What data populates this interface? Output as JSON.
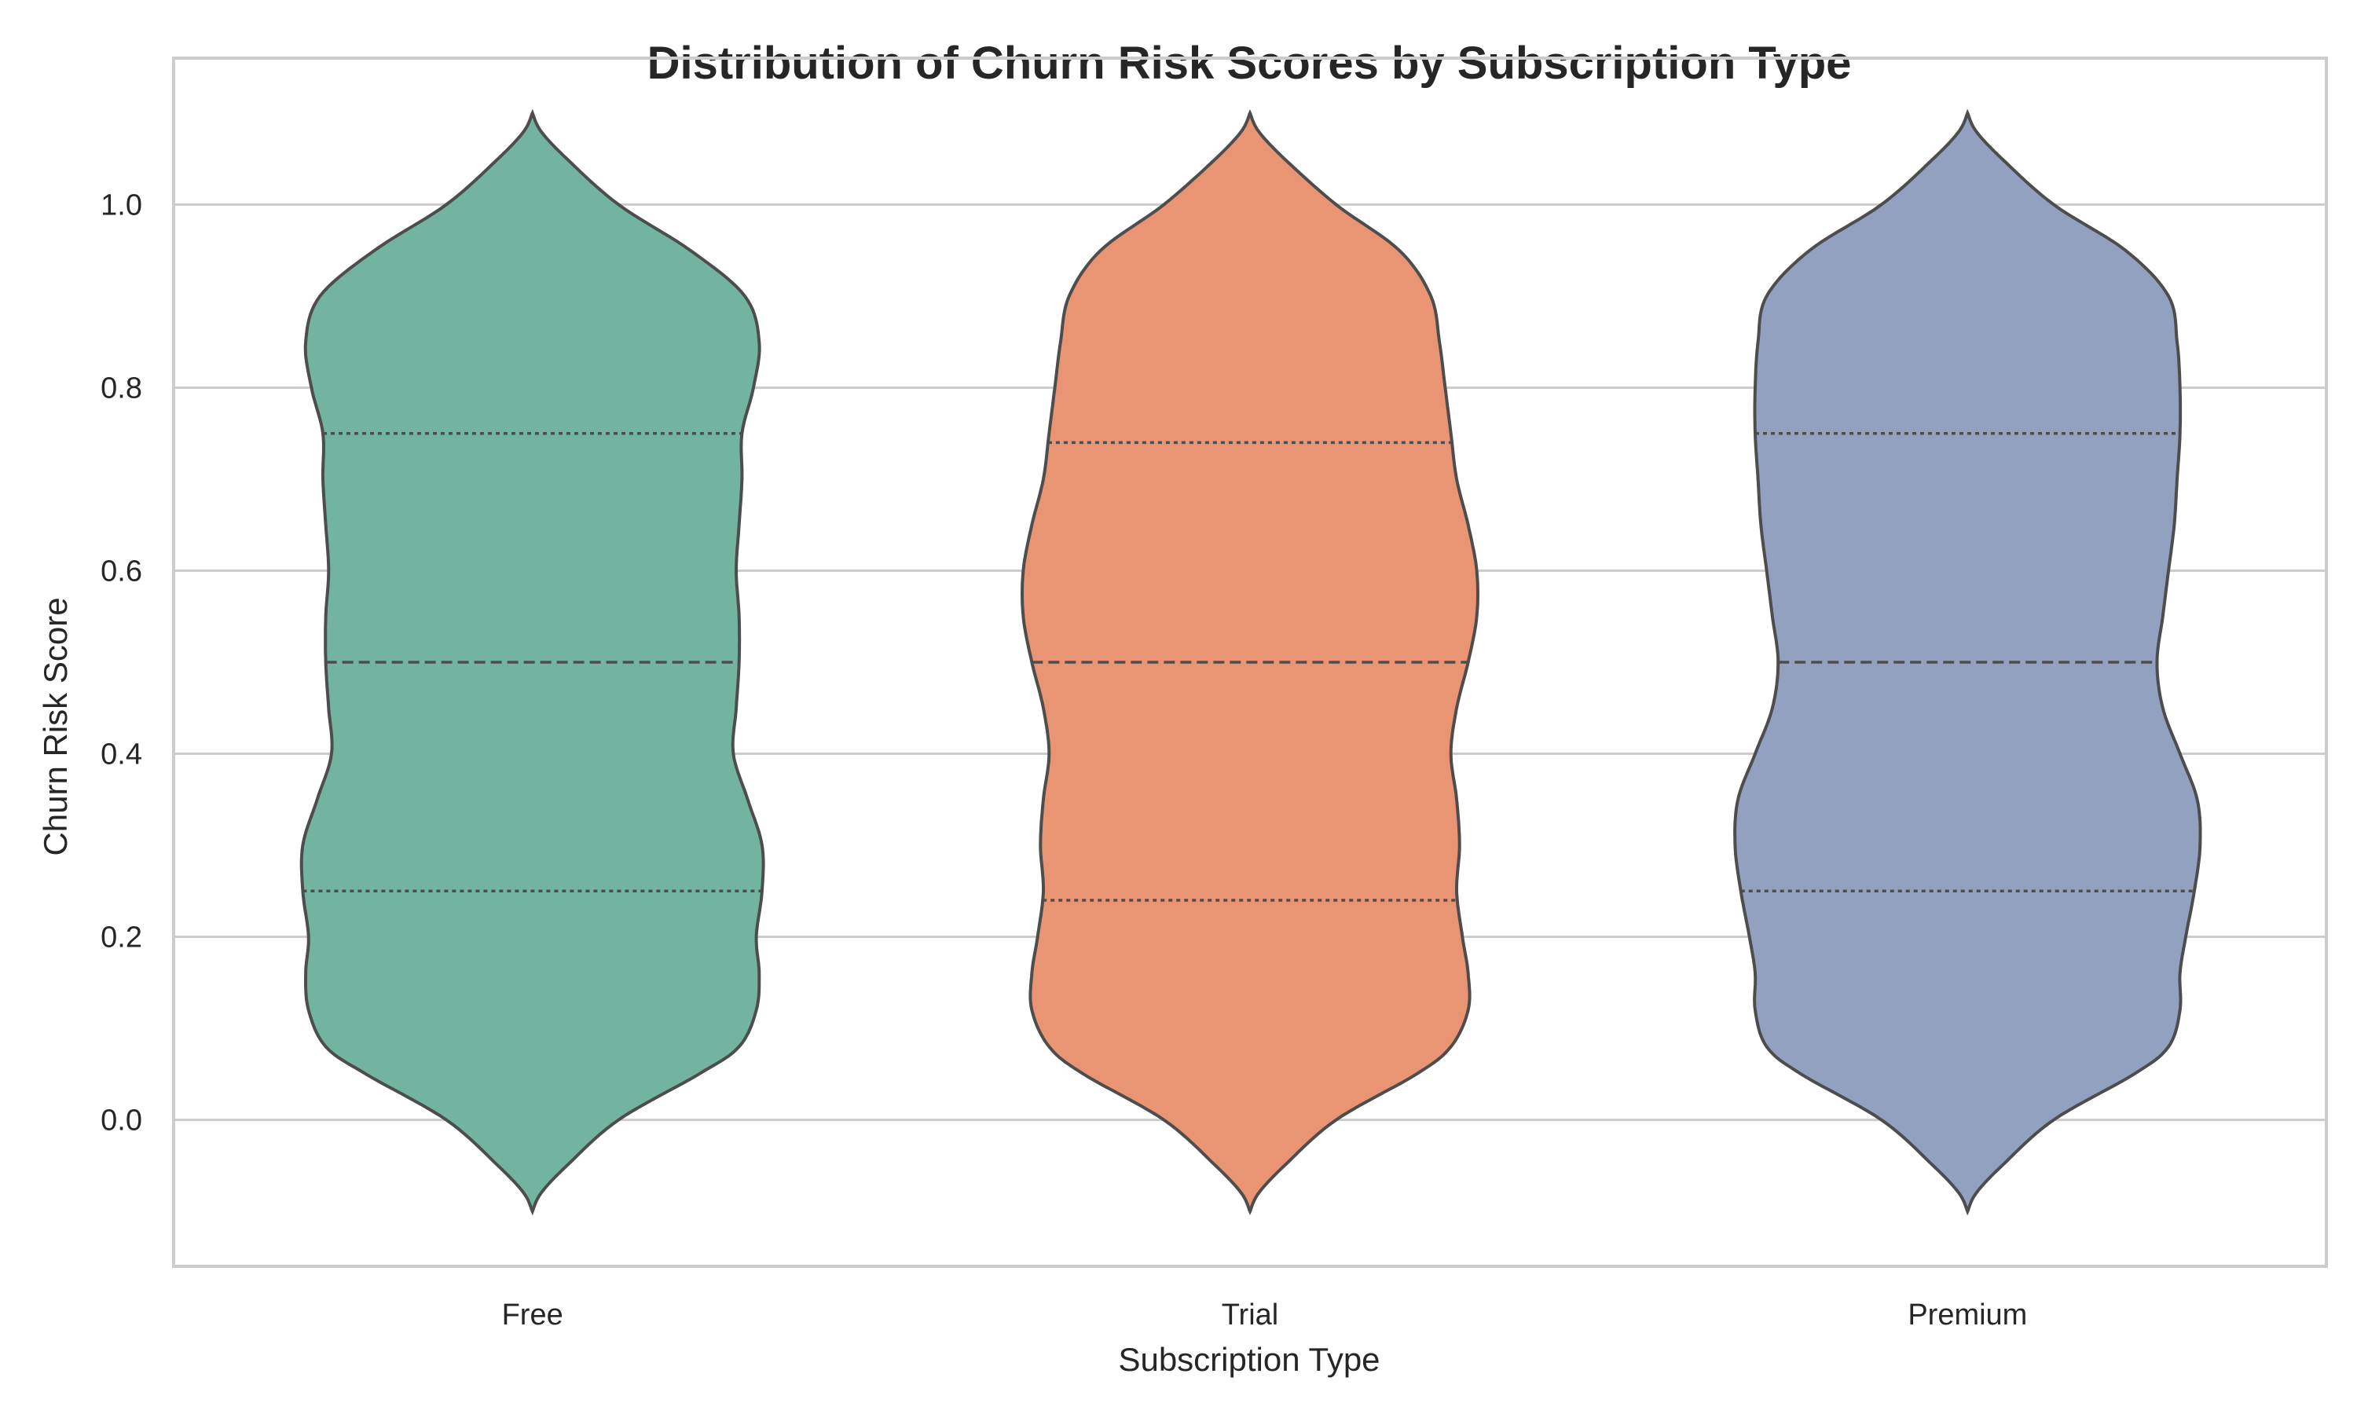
{
  "chart_data": {
    "type": "violin",
    "title": "Distribution of Churn Risk Scores by Subscription Type",
    "xlabel": "Subscription Type",
    "ylabel": "Churn Risk Score",
    "ylim": [
      -0.16,
      1.16
    ],
    "yticks": [
      0.0,
      0.2,
      0.4,
      0.6,
      0.8,
      1.0
    ],
    "ytick_labels": [
      "0.0",
      "0.2",
      "0.4",
      "0.6",
      "0.8",
      "1.0"
    ],
    "grid": "horizontal",
    "categories": [
      "Free",
      "Trial",
      "Premium"
    ],
    "colors": [
      "#73b4a0",
      "#e99574",
      "#93a1c1"
    ],
    "edge_color": "#4d4d4d",
    "range": [
      -0.1,
      1.1
    ],
    "series": [
      {
        "category": "Free",
        "color": "#73b4a0",
        "quartiles": {
          "q1": 0.25,
          "median": 0.5,
          "q3": 0.75
        },
        "density_profile": [
          [
            -0.1,
            0.0
          ],
          [
            -0.08,
            0.03
          ],
          [
            -0.05,
            0.12
          ],
          [
            0.0,
            0.3
          ],
          [
            0.05,
            0.58
          ],
          [
            0.08,
            0.72
          ],
          [
            0.12,
            0.78
          ],
          [
            0.16,
            0.79
          ],
          [
            0.2,
            0.78
          ],
          [
            0.25,
            0.8
          ],
          [
            0.3,
            0.8
          ],
          [
            0.35,
            0.75
          ],
          [
            0.4,
            0.7
          ],
          [
            0.45,
            0.71
          ],
          [
            0.5,
            0.72
          ],
          [
            0.55,
            0.72
          ],
          [
            0.6,
            0.71
          ],
          [
            0.65,
            0.72
          ],
          [
            0.7,
            0.73
          ],
          [
            0.75,
            0.73
          ],
          [
            0.8,
            0.77
          ],
          [
            0.85,
            0.79
          ],
          [
            0.9,
            0.74
          ],
          [
            0.95,
            0.55
          ],
          [
            1.0,
            0.3
          ],
          [
            1.05,
            0.12
          ],
          [
            1.08,
            0.03
          ],
          [
            1.1,
            0.0
          ]
        ]
      },
      {
        "category": "Trial",
        "color": "#e99574",
        "quartiles": {
          "q1": 0.24,
          "median": 0.5,
          "q3": 0.74
        },
        "density_profile": [
          [
            -0.1,
            0.0
          ],
          [
            -0.08,
            0.03
          ],
          [
            -0.05,
            0.12
          ],
          [
            0.0,
            0.3
          ],
          [
            0.05,
            0.58
          ],
          [
            0.08,
            0.7
          ],
          [
            0.12,
            0.76
          ],
          [
            0.16,
            0.76
          ],
          [
            0.2,
            0.74
          ],
          [
            0.25,
            0.72
          ],
          [
            0.3,
            0.73
          ],
          [
            0.35,
            0.72
          ],
          [
            0.4,
            0.7
          ],
          [
            0.45,
            0.72
          ],
          [
            0.5,
            0.76
          ],
          [
            0.55,
            0.79
          ],
          [
            0.6,
            0.79
          ],
          [
            0.65,
            0.76
          ],
          [
            0.7,
            0.72
          ],
          [
            0.75,
            0.7
          ],
          [
            0.8,
            0.68
          ],
          [
            0.85,
            0.66
          ],
          [
            0.9,
            0.63
          ],
          [
            0.95,
            0.52
          ],
          [
            1.0,
            0.3
          ],
          [
            1.05,
            0.12
          ],
          [
            1.08,
            0.03
          ],
          [
            1.1,
            0.0
          ]
        ]
      },
      {
        "category": "Premium",
        "color": "#93a1c1",
        "quartiles": {
          "q1": 0.25,
          "median": 0.5,
          "q3": 0.75
        },
        "density_profile": [
          [
            -0.1,
            0.0
          ],
          [
            -0.08,
            0.03
          ],
          [
            -0.05,
            0.12
          ],
          [
            0.0,
            0.3
          ],
          [
            0.05,
            0.58
          ],
          [
            0.08,
            0.7
          ],
          [
            0.12,
            0.74
          ],
          [
            0.16,
            0.74
          ],
          [
            0.2,
            0.76
          ],
          [
            0.25,
            0.79
          ],
          [
            0.3,
            0.81
          ],
          [
            0.35,
            0.8
          ],
          [
            0.4,
            0.74
          ],
          [
            0.45,
            0.68
          ],
          [
            0.5,
            0.66
          ],
          [
            0.55,
            0.68
          ],
          [
            0.6,
            0.7
          ],
          [
            0.65,
            0.72
          ],
          [
            0.7,
            0.73
          ],
          [
            0.75,
            0.74
          ],
          [
            0.8,
            0.74
          ],
          [
            0.85,
            0.73
          ],
          [
            0.9,
            0.7
          ],
          [
            0.95,
            0.55
          ],
          [
            1.0,
            0.3
          ],
          [
            1.05,
            0.12
          ],
          [
            1.08,
            0.03
          ],
          [
            1.1,
            0.0
          ]
        ]
      }
    ]
  }
}
